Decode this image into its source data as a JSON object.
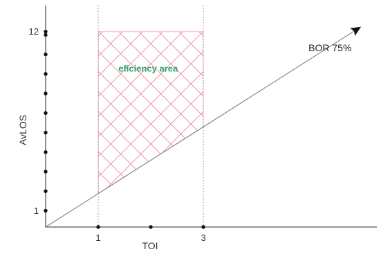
{
  "colors": {
    "axis": "#555555",
    "hatch": "#f07890",
    "guide": "#888888",
    "line": "#888888",
    "region_text": "#2e9e6e",
    "arrow": "#111111"
  },
  "chart_data": {
    "type": "line",
    "xlabel": "TOI",
    "ylabel": "AvLOS",
    "x_ticks": [
      {
        "value": 1,
        "label": "1"
      },
      {
        "value": 2,
        "label": ""
      },
      {
        "value": 3,
        "label": "3"
      }
    ],
    "y_ticks": [
      {
        "value": 1,
        "label": "1"
      },
      {
        "value": 2,
        "label": ""
      },
      {
        "value": 3,
        "label": ""
      },
      {
        "value": 4,
        "label": ""
      },
      {
        "value": 5,
        "label": ""
      },
      {
        "value": 6,
        "label": ""
      },
      {
        "value": 7,
        "label": ""
      },
      {
        "value": 8,
        "label": ""
      },
      {
        "value": 9,
        "label": ""
      },
      {
        "value": 10,
        "label": ""
      },
      {
        "value": 11,
        "label": ""
      },
      {
        "value": 12,
        "label": "12"
      }
    ],
    "y_tick_dots": [
      2.2,
      3.4,
      4.6,
      5.8,
      7.0,
      8.2,
      9.4,
      10.6,
      11.8
    ],
    "xlim": [
      0,
      6.3
    ],
    "ylim": [
      0,
      13.6
    ],
    "series": [
      {
        "label": "BOR 75%",
        "x": [
          0,
          6.0
        ],
        "y": [
          0,
          12.3
        ]
      }
    ],
    "guides_x": [
      1,
      3
    ],
    "region": {
      "label": "eficiency area",
      "label_at": [
        1.95,
        9.55
      ],
      "x": [
        1,
        3
      ],
      "y_top": 12
    },
    "annotation": {
      "text": "BOR 75%",
      "at": [
        5.0,
        10.8
      ]
    }
  }
}
